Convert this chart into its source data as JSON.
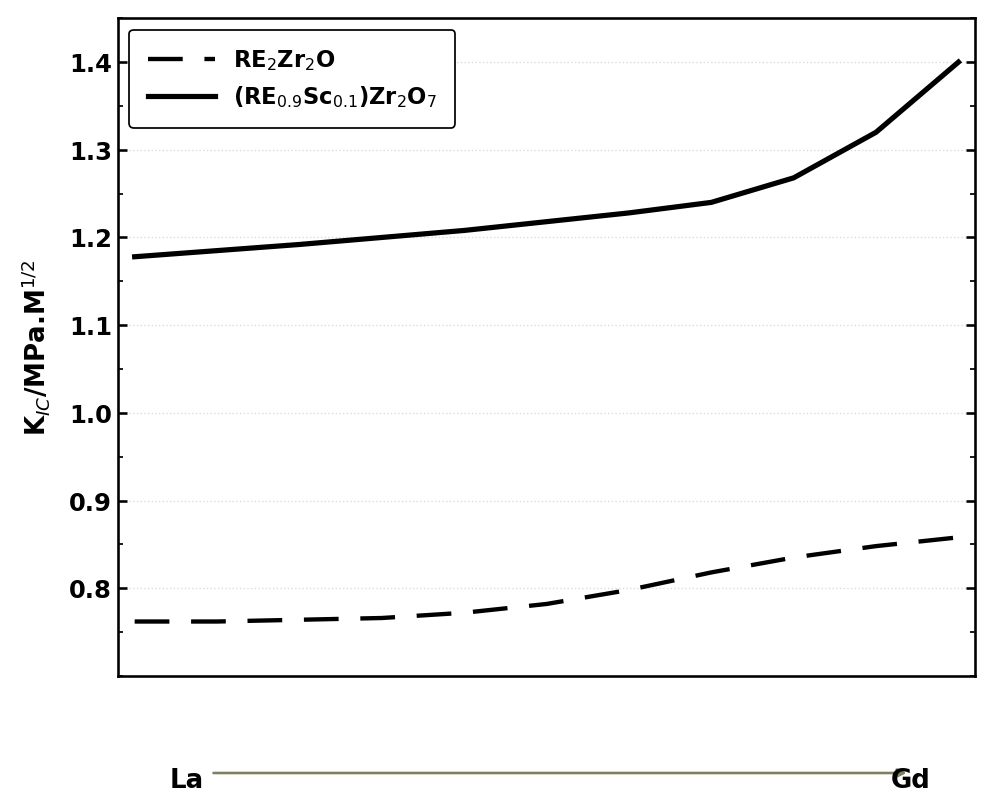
{
  "x_values": [
    0,
    0.1,
    0.2,
    0.3,
    0.4,
    0.5,
    0.6,
    0.7,
    0.8,
    0.9,
    1.0
  ],
  "dashed_y": [
    0.762,
    0.762,
    0.764,
    0.766,
    0.772,
    0.782,
    0.798,
    0.818,
    0.835,
    0.848,
    0.858
  ],
  "solid_y": [
    1.178,
    1.185,
    1.192,
    1.2,
    1.208,
    1.218,
    1.228,
    1.24,
    1.268,
    1.32,
    1.4
  ],
  "ylim": [
    0.7,
    1.45
  ],
  "yticks": [
    0.8,
    0.9,
    1.0,
    1.1,
    1.2,
    1.3,
    1.4
  ],
  "ylabel": "K$_{IC}$/MPa.M$^{1/2}$",
  "xlabel_left": "La",
  "xlabel_right": "Gd",
  "legend_dashed": "RE$_2$Zr$_2$O",
  "legend_solid": "(RE$_{0.9}$Sc$_{0.1}$)Zr$_2$O$_7$",
  "line_color": "#000000",
  "background_color": "#ffffff",
  "arrow_color": "#808060"
}
